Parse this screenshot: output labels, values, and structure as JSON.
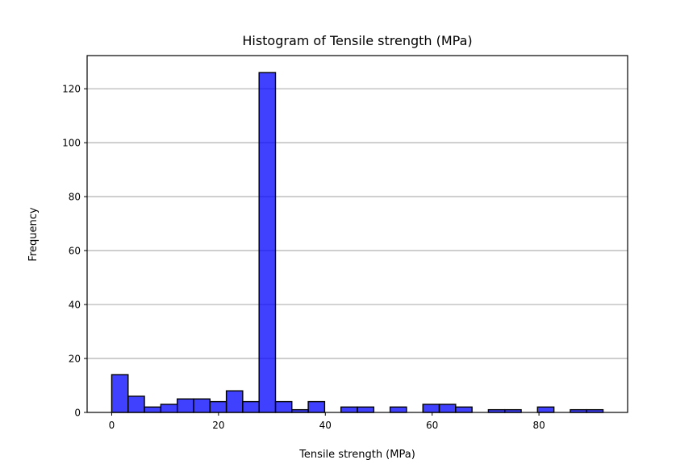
{
  "chart_data": {
    "type": "bar",
    "title": "Histogram of Tensile strength (MPa)",
    "xlabel": "Tensile strength (MPa)",
    "ylabel": "Frequency",
    "xlim": [
      -4.6,
      96.6
    ],
    "ylim": [
      0,
      132.3
    ],
    "xticks": [
      0,
      20,
      40,
      60,
      80
    ],
    "yticks": [
      0,
      20,
      40,
      60,
      80,
      100,
      120
    ],
    "grid": "y-axis only",
    "bar_color": "#0000ff",
    "bar_alpha": 0.75,
    "edge_color": "#000000",
    "grid_color": "#b0b0b0",
    "bins": [
      [
        0.0,
        3.07,
        14
      ],
      [
        3.07,
        6.13,
        6
      ],
      [
        6.13,
        9.2,
        2
      ],
      [
        9.2,
        12.27,
        3
      ],
      [
        12.27,
        15.33,
        5
      ],
      [
        15.33,
        18.4,
        5
      ],
      [
        18.4,
        21.47,
        4
      ],
      [
        21.47,
        24.53,
        8
      ],
      [
        24.53,
        27.6,
        4
      ],
      [
        27.6,
        30.67,
        126
      ],
      [
        30.67,
        33.73,
        4
      ],
      [
        33.73,
        36.8,
        1
      ],
      [
        36.8,
        39.87,
        4
      ],
      [
        39.87,
        42.93,
        0
      ],
      [
        42.93,
        46.0,
        2
      ],
      [
        46.0,
        49.07,
        2
      ],
      [
        49.07,
        52.13,
        0
      ],
      [
        52.13,
        55.2,
        2
      ],
      [
        55.2,
        58.27,
        0
      ],
      [
        58.27,
        61.33,
        3
      ],
      [
        61.33,
        64.4,
        3
      ],
      [
        64.4,
        67.47,
        2
      ],
      [
        67.47,
        70.53,
        0
      ],
      [
        70.53,
        73.6,
        1
      ],
      [
        73.6,
        76.67,
        1
      ],
      [
        76.67,
        79.73,
        0
      ],
      [
        79.73,
        82.8,
        2
      ],
      [
        82.8,
        85.87,
        0
      ],
      [
        85.87,
        88.93,
        1
      ],
      [
        88.93,
        92.0,
        1
      ]
    ]
  }
}
